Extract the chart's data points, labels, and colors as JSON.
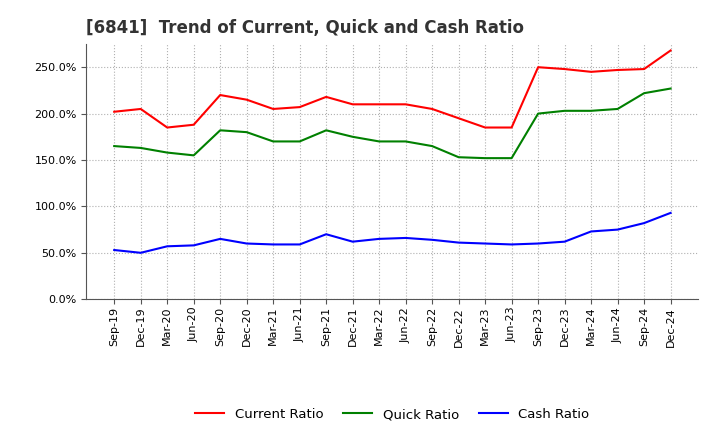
{
  "title": "[6841]  Trend of Current, Quick and Cash Ratio",
  "x_labels": [
    "Sep-19",
    "Dec-19",
    "Mar-20",
    "Jun-20",
    "Sep-20",
    "Dec-20",
    "Mar-21",
    "Jun-21",
    "Sep-21",
    "Dec-21",
    "Mar-22",
    "Jun-22",
    "Sep-22",
    "Dec-22",
    "Mar-23",
    "Jun-23",
    "Sep-23",
    "Dec-23",
    "Mar-24",
    "Jun-24",
    "Sep-24",
    "Dec-24"
  ],
  "current_ratio": [
    202,
    205,
    185,
    188,
    220,
    215,
    205,
    207,
    218,
    210,
    210,
    210,
    205,
    195,
    185,
    185,
    250,
    248,
    245,
    247,
    248,
    268
  ],
  "quick_ratio": [
    165,
    163,
    158,
    155,
    182,
    180,
    170,
    170,
    182,
    175,
    170,
    170,
    165,
    153,
    152,
    152,
    200,
    203,
    203,
    205,
    222,
    227
  ],
  "cash_ratio": [
    53,
    50,
    57,
    58,
    65,
    60,
    59,
    59,
    70,
    62,
    65,
    66,
    64,
    61,
    60,
    59,
    60,
    62,
    73,
    75,
    82,
    93
  ],
  "ylim": [
    0,
    275
  ],
  "yticks": [
    0,
    50,
    100,
    150,
    200,
    250
  ],
  "current_color": "#ff0000",
  "quick_color": "#008000",
  "cash_color": "#0000ff",
  "bg_color": "#ffffff",
  "grid_color": "#b0b0b0",
  "title_color": "#333333",
  "title_fontsize": 12,
  "legend_fontsize": 9.5,
  "tick_fontsize": 8
}
